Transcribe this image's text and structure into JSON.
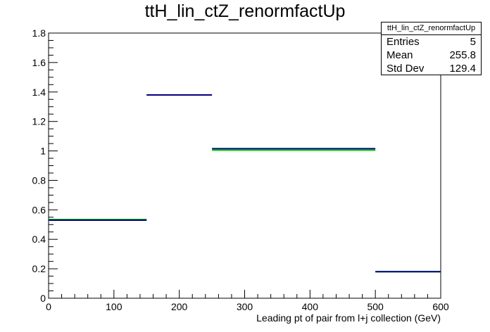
{
  "title": "ttH_lin_ctZ_renormfactUp",
  "stats_box": {
    "name": "ttH_lin_ctZ_renormfactUp",
    "rows": [
      {
        "label": "Entries",
        "value": "5"
      },
      {
        "label": "Mean",
        "value": "255.8"
      },
      {
        "label": "Std Dev",
        "value": "129.4"
      }
    ]
  },
  "colors": {
    "primary": "#000080",
    "secondary": "#00cc00",
    "axis": "#000000"
  },
  "chart_data": {
    "type": "step",
    "title": "ttH_lin_ctZ_renormfactUp",
    "xlabel": "Leading pt of pair from l+j collection (GeV)",
    "ylabel": "",
    "xlim": [
      0,
      600
    ],
    "ylim": [
      0,
      1.8
    ],
    "x_ticks": [
      0,
      100,
      200,
      300,
      400,
      500,
      600
    ],
    "x_tick_labels": [
      "0",
      "100",
      "200",
      "300",
      "400",
      "500",
      "600"
    ],
    "y_ticks": [
      0,
      0.2,
      0.4,
      0.6,
      0.8,
      1,
      1.2,
      1.4,
      1.6,
      1.8
    ],
    "y_tick_labels": [
      "0",
      "0.2",
      "0.4",
      "0.6",
      "0.8",
      "1",
      "1.2",
      "1.4",
      "1.6",
      "1.8"
    ],
    "bin_edges": [
      0,
      150,
      250,
      500,
      600
    ],
    "series": [
      {
        "values": [
          0.53,
          1.38,
          1.015,
          0.18
        ],
        "color": "#000080"
      },
      {
        "values": [
          0.535,
          1.38,
          1.005,
          0.18
        ],
        "color": "#00cc00"
      }
    ],
    "grid": false,
    "legend": "top-right"
  }
}
